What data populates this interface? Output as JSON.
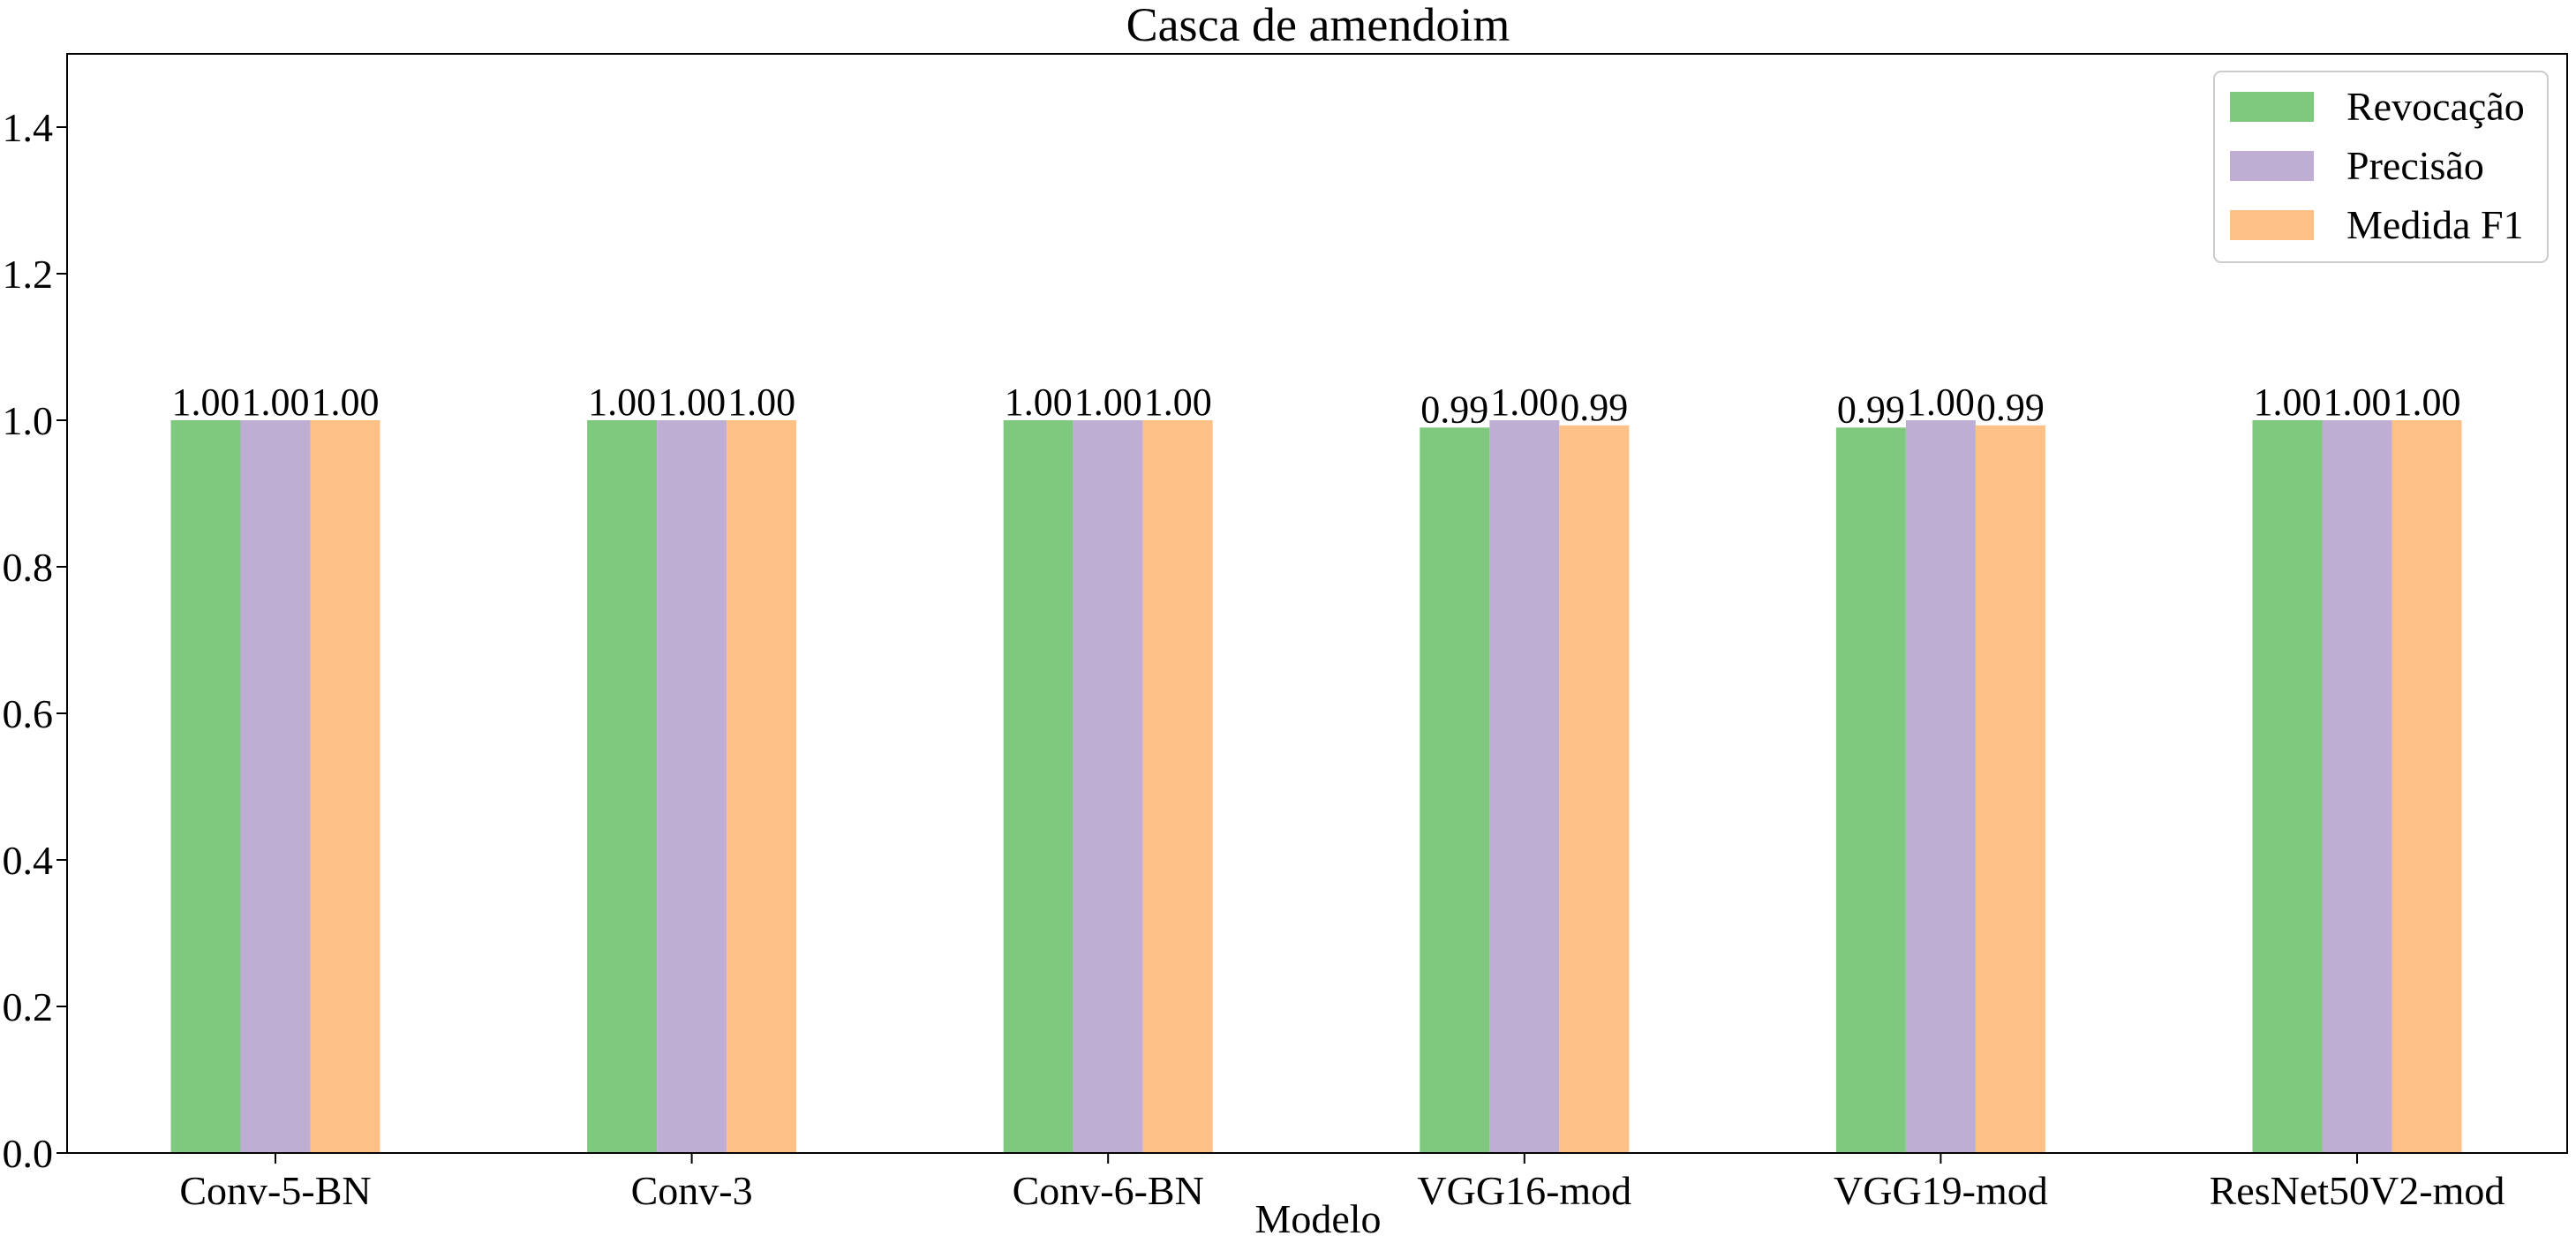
{
  "chart_data": {
    "type": "bar",
    "title": "Casca de amendoim",
    "xlabel": "Modelo",
    "ylabel": "",
    "ylim": [
      0,
      1.5
    ],
    "yticks": [
      0.0,
      0.2,
      0.4,
      0.6,
      0.8,
      1.0,
      1.2,
      1.4
    ],
    "ytick_labels": [
      "0.0",
      "0.2",
      "0.4",
      "0.6",
      "0.8",
      "1.0",
      "1.2",
      "1.4"
    ],
    "categories": [
      "Conv-5-BN",
      "Conv-3",
      "Conv-6-BN",
      "VGG16-mod",
      "VGG19-mod",
      "ResNet50V2-mod"
    ],
    "series": [
      {
        "name": "Revocação",
        "color": "#7fc97f",
        "values": [
          1.0,
          1.0,
          1.0,
          0.99,
          0.99,
          1.0
        ],
        "labels": [
          "1.00",
          "1.00",
          "1.00",
          "0.99",
          "0.99",
          "1.00"
        ]
      },
      {
        "name": "Precisão",
        "color": "#beaed4",
        "values": [
          1.0,
          1.0,
          1.0,
          1.0,
          1.0,
          1.0
        ],
        "labels": [
          "1.00",
          "1.00",
          "1.00",
          "1.00",
          "1.00",
          "1.00"
        ]
      },
      {
        "name": "Medida F1",
        "color": "#fdc086",
        "values": [
          1.0,
          1.0,
          1.0,
          0.993,
          0.993,
          1.0
        ],
        "labels": [
          "1.00",
          "1.00",
          "1.00",
          "0.99",
          "0.99",
          "1.00"
        ]
      }
    ],
    "grid": false,
    "legend_position": "top-right"
  }
}
